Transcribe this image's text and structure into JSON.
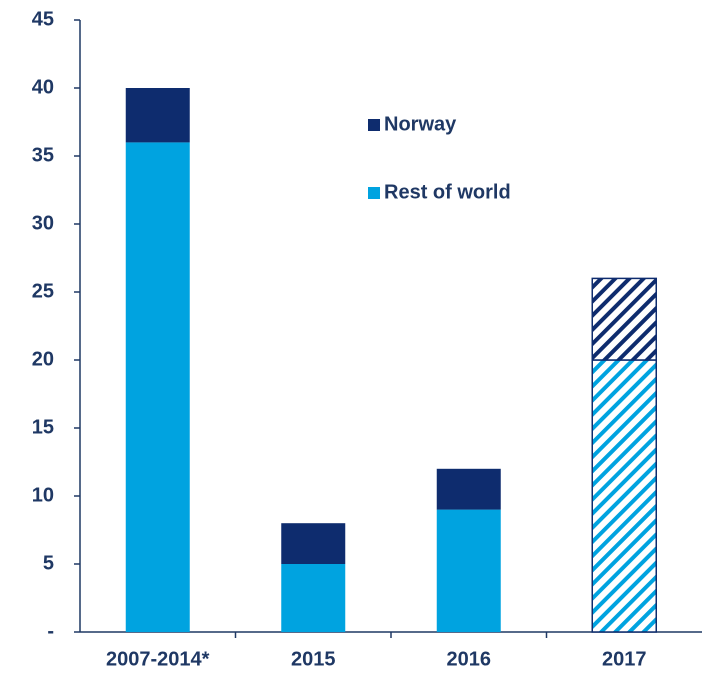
{
  "chart_data": {
    "type": "stacked_bar",
    "categories": [
      "2007-2014*",
      "2015",
      "2016",
      "2017"
    ],
    "series": [
      {
        "name": "Rest of world",
        "color": "#00a3e0",
        "values": [
          36,
          5,
          9,
          20
        ]
      },
      {
        "name": "Norway",
        "color": "#0e2c6e",
        "values": [
          4,
          3,
          3,
          6
        ]
      }
    ],
    "hatched": [
      false,
      false,
      false,
      true
    ],
    "ylim": [
      0,
      45
    ],
    "yticks": [
      {
        "value": 0,
        "label": "-"
      },
      5,
      10,
      15,
      20,
      25,
      30,
      35,
      40,
      45
    ],
    "legend": "upper center"
  }
}
